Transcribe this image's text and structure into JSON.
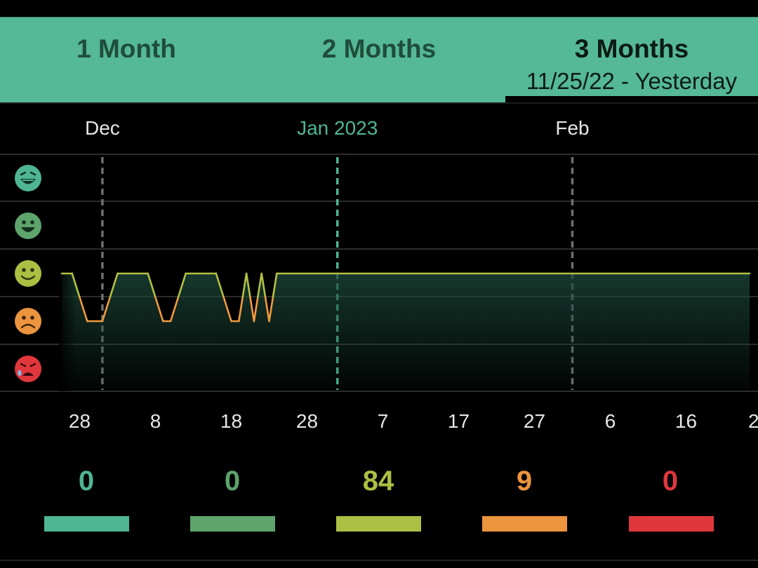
{
  "tabs": [
    {
      "label": "1 Month",
      "sub": "",
      "active": false
    },
    {
      "label": "2 Months",
      "sub": "",
      "active": false
    },
    {
      "label": "3 Months",
      "sub": "11/25/22 - Yesterday",
      "active": true
    }
  ],
  "chart_data": {
    "type": "line",
    "title": "",
    "xlabel": "",
    "ylabel": "",
    "y_levels": [
      "rad",
      "good",
      "meh",
      "bad",
      "awful"
    ],
    "ylim": [
      1,
      5
    ],
    "month_labels": [
      {
        "label": "Dec",
        "date": "2022-12-01",
        "highlight": false
      },
      {
        "label": "Jan 2023",
        "date": "2023-01-01",
        "highlight": true
      },
      {
        "label": "Feb",
        "date": "2023-02-01",
        "highlight": false
      }
    ],
    "tick_labels": [
      "28",
      "8",
      "18",
      "28",
      "7",
      "17",
      "27",
      "6",
      "16",
      "2"
    ],
    "tick_dates": [
      "2022-11-28",
      "2022-12-08",
      "2022-12-18",
      "2022-12-28",
      "2023-01-07",
      "2023-01-17",
      "2023-01-27",
      "2023-02-06",
      "2023-02-16",
      "2023-02-26"
    ],
    "xlim": [
      "2022-11-25",
      "2023-02-26"
    ],
    "series": [
      {
        "values": [
          [
            "2022-11-25",
            3
          ],
          [
            "2022-11-27",
            3
          ],
          [
            "2022-11-29",
            2
          ],
          [
            "2022-12-01",
            2
          ],
          [
            "2022-12-03",
            3
          ],
          [
            "2022-12-07",
            3
          ],
          [
            "2022-12-09",
            2
          ],
          [
            "2022-12-10",
            2
          ],
          [
            "2022-12-12",
            3
          ],
          [
            "2022-12-16",
            3
          ],
          [
            "2022-12-18",
            2
          ],
          [
            "2022-12-19",
            2
          ],
          [
            "2022-12-20",
            3
          ],
          [
            "2022-12-21",
            2
          ],
          [
            "2022-12-22",
            3
          ],
          [
            "2022-12-23",
            2
          ],
          [
            "2022-12-24",
            3
          ],
          [
            "2023-02-25",
            3
          ]
        ]
      }
    ]
  },
  "summary": [
    {
      "mood": "rad",
      "count": "0",
      "color": "#4fb593"
    },
    {
      "mood": "good",
      "count": "0",
      "color": "#5ea46c"
    },
    {
      "mood": "meh",
      "count": "84",
      "color": "#abc043"
    },
    {
      "mood": "bad",
      "count": "9",
      "color": "#ec943e"
    },
    {
      "mood": "awful",
      "count": "0",
      "color": "#e0373d"
    }
  ],
  "colors": {
    "header_bg": "#55b897",
    "grid": "#3a3a3a",
    "month_line": "#6e6e6e",
    "current_month": "#4fb593",
    "line_meh": "#b3c042",
    "line_bad": "#f09a3e"
  }
}
